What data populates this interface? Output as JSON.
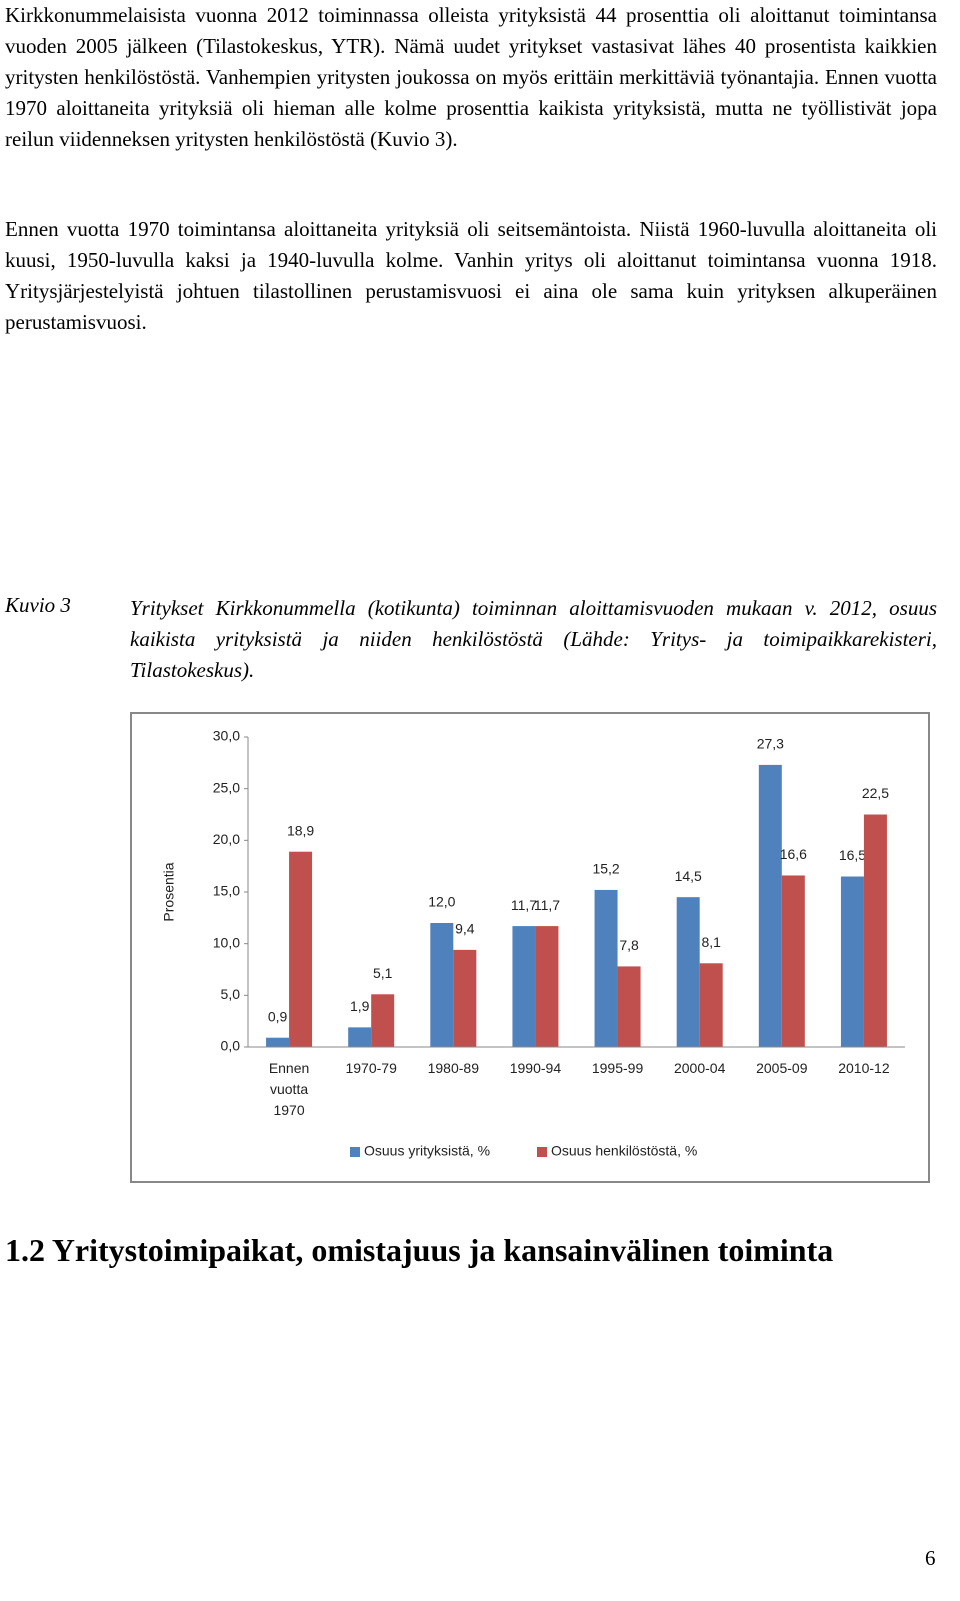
{
  "paragraphs": [
    "Kirkkonummelaisista vuonna 2012 toiminnassa olleista yrityksistä 44 prosenttia oli aloittanut toimintansa vuoden 2005 jälkeen (Tilastokeskus, YTR). Nämä uudet yritykset vastasivat lähes 40 prosentista kaikkien yritysten henkilöstöstä. Vanhempien yritysten joukossa on myös erittäin merkittäviä työnantajia. Ennen vuotta 1970 aloittaneita yrityksiä oli hieman alle kolme prosenttia kaikista yrityksistä, mutta ne työllistivät jopa reilun viidenneksen yritysten henkilöstöstä (Kuvio 3).",
    "Ennen vuotta 1970 toimintansa aloittaneita yrityksiä oli seitsemäntoista. Niistä 1960-luvulla aloittaneita oli kuusi, 1950-luvulla kaksi ja 1940-luvulla kolme. Vanhin yritys oli aloittanut toimintansa vuonna 1918. Yritysjärjestelyistä johtuen tilastollinen perustamisvuosi ei aina ole sama kuin yrityksen alkuperäinen perustamisvuosi."
  ],
  "figure": {
    "label": "Kuvio 3",
    "caption": "Yritykset Kirkkonummella (kotikunta) toiminnan aloittamisvuoden mukaan v. 2012, osuus kaikista yrityksistä ja niiden henkilöstöstä (Lähde: Yritys- ja toimipaikkarekisteri, Tilastokeskus)."
  },
  "chart_data": {
    "type": "bar",
    "y_label": "Prosentia",
    "categories": [
      "Ennen vuotta 1970",
      "1970-79",
      "1980-89",
      "1990-94",
      "1995-99",
      "2000-04",
      "2005-09",
      "2010-12"
    ],
    "series": [
      {
        "name": "Osuus yrityksistä, %",
        "color": "#4f81bd",
        "values": [
          0.9,
          1.9,
          12.0,
          11.7,
          15.2,
          14.5,
          27.3,
          16.5
        ],
        "value_labels": [
          "0,9",
          "1,9",
          "12,0",
          "11,7",
          "15,2",
          "14,5",
          "27,3",
          "16,5"
        ]
      },
      {
        "name": "Osuus henkilöstöstä, %",
        "color": "#c0504d",
        "values": [
          18.9,
          5.1,
          9.4,
          11.7,
          7.8,
          8.1,
          16.6,
          22.5
        ],
        "value_labels": [
          "18,9",
          "5,1",
          "9,4",
          "11,7",
          "7,8",
          "8,1",
          "16,6",
          "22,5"
        ]
      }
    ],
    "ylim": [
      0,
      30
    ],
    "yticks": [
      {
        "value": 0,
        "label": "0,0"
      },
      {
        "value": 5,
        "label": "5,0"
      },
      {
        "value": 10,
        "label": "10,0"
      },
      {
        "value": 15,
        "label": "15,0"
      },
      {
        "value": 20,
        "label": "20,0"
      },
      {
        "value": 25,
        "label": "25,0"
      },
      {
        "value": 30,
        "label": "30,0"
      }
    ],
    "grid": false,
    "legend": "bottom"
  },
  "heading": "1.2 Yritystoimipaikat, omistajuus ja kansainvälinen toiminta",
  "page_number": "6"
}
